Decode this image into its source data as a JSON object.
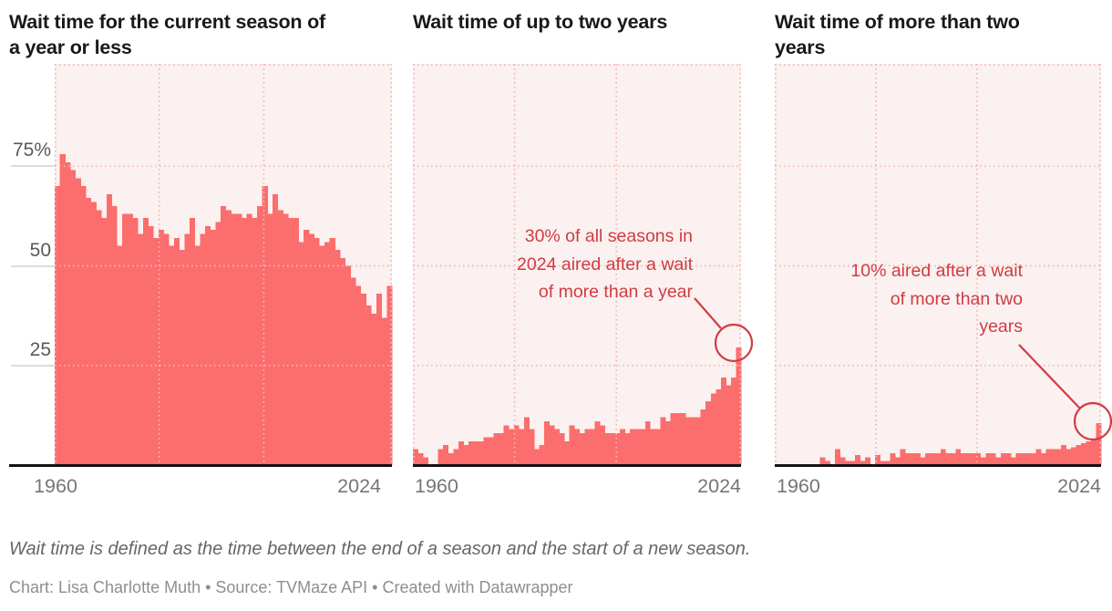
{
  "y_axis": {
    "tick_labels": [
      "75%",
      "50",
      "25"
    ],
    "tick_values": [
      75,
      50,
      25
    ]
  },
  "footer": {
    "note": "Wait time is defined as the time between the end of a season and the start of a new season.",
    "byline": "Chart: Lisa Charlotte Muth • Source: TVMaze API • Created with Datawrapper"
  },
  "colors": {
    "bar": "#fc6d6d",
    "plot_bg": "#faf1f0",
    "grid": "#f2b8b4",
    "annotation": "#d23b41",
    "axis_line": "#121212",
    "axis_text": "#767676"
  },
  "chart_data": [
    {
      "type": "bar",
      "title_lines": [
        "Wait time for the current season of",
        "a year or less"
      ],
      "x_start": 1960,
      "x_end": 2024,
      "x_tick_labels": [
        "1960",
        "2024"
      ],
      "ylim": [
        0,
        100
      ],
      "unit": "%",
      "values": [
        70,
        78,
        76,
        74,
        72,
        70,
        67,
        66,
        64,
        62,
        68,
        65,
        55,
        63,
        63,
        62,
        58,
        62,
        60,
        57,
        59,
        58,
        55,
        57,
        54,
        58,
        62,
        55,
        58,
        60,
        59,
        61,
        65,
        64,
        63,
        63,
        62,
        63,
        62,
        65,
        70,
        63,
        68,
        64,
        63,
        62,
        62,
        56,
        59,
        58,
        57,
        55,
        56,
        57,
        54,
        52,
        50,
        47,
        45,
        43,
        40,
        38,
        43,
        37,
        45
      ]
    },
    {
      "type": "bar",
      "title_lines": [
        "Wait time of up to two years"
      ],
      "x_start": 1960,
      "x_end": 2024,
      "x_tick_labels": [
        "1960",
        "2024"
      ],
      "ylim": [
        0,
        100
      ],
      "unit": "%",
      "values": [
        4,
        3,
        2,
        0,
        0,
        4,
        5,
        3,
        4,
        6,
        5,
        6,
        6,
        6,
        7,
        7,
        8,
        8,
        10,
        9,
        10,
        9,
        12,
        9,
        4,
        5,
        11,
        10,
        9,
        8,
        6,
        10,
        9,
        8,
        9,
        9,
        11,
        10,
        8,
        8,
        8,
        9,
        8,
        9,
        9,
        9,
        11,
        9,
        9,
        12,
        11,
        13,
        13,
        13,
        12,
        12,
        12,
        14,
        16,
        18,
        19,
        22,
        20,
        22,
        29.5
      ],
      "annotation": {
        "lines": [
          "30% of all seasons in",
          "2024 aired after a wait",
          "of more than a year"
        ],
        "highlight_year": 2024,
        "highlight_value": 30
      }
    },
    {
      "type": "bar",
      "title_lines": [
        "Wait time of more than two",
        "years"
      ],
      "x_start": 1960,
      "x_end": 2024,
      "x_tick_labels": [
        "1960",
        "2024"
      ],
      "ylim": [
        0,
        100
      ],
      "unit": "%",
      "values": [
        0,
        0,
        0,
        0,
        0,
        0,
        0,
        0,
        0,
        2,
        1,
        0,
        4,
        2,
        1,
        1,
        2.5,
        1,
        2,
        0,
        2.5,
        1,
        1,
        3,
        2,
        4,
        3,
        3,
        3,
        2,
        3,
        3,
        3,
        4,
        3,
        3,
        4,
        3,
        3,
        3,
        3,
        2,
        3,
        3,
        2,
        3,
        3,
        2,
        3,
        3,
        3,
        3,
        4,
        3,
        4,
        4,
        4,
        5,
        4,
        4.5,
        5,
        5.5,
        6,
        6.5,
        10.5
      ],
      "annotation": {
        "lines": [
          "10% aired after a wait",
          "of more than two",
          "years"
        ],
        "highlight_year": 2024,
        "highlight_value": 10
      }
    }
  ]
}
